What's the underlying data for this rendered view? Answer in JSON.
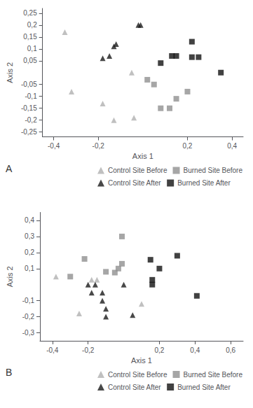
{
  "chart_data": [
    {
      "type": "scatter",
      "xlabel": "Axis 1",
      "ylabel": "Axis 2",
      "annotations": [
        "A"
      ],
      "xlim": [
        -0.45,
        0.45
      ],
      "ylim": [
        -0.27,
        0.27
      ],
      "xticks": [
        {
          "value": -0.4,
          "label": "-0,4"
        },
        {
          "value": -0.2,
          "label": "-0,2"
        },
        {
          "value": 0.2,
          "label": "0,2"
        },
        {
          "value": 0.4,
          "label": "0,4"
        }
      ],
      "yticks": [
        {
          "value": -0.25,
          "label": "-0,25"
        },
        {
          "value": -0.2,
          "label": "-0,2"
        },
        {
          "value": -0.15,
          "label": "-0,15"
        },
        {
          "value": -0.1,
          "label": "-0,1"
        },
        {
          "value": -0.05,
          "label": "-0,05"
        },
        {
          "value": 0.05,
          "label": "0,05"
        },
        {
          "value": 0.1,
          "label": "0,1"
        },
        {
          "value": 0.15,
          "label": "0,15"
        },
        {
          "value": 0.2,
          "label": "0,2"
        },
        {
          "value": 0.25,
          "label": "0,25"
        }
      ],
      "grid": false,
      "legend": "lower right",
      "series": [
        {
          "name": "Control Site Before",
          "color": "#b0b0b0",
          "marker": "triangle",
          "x": [
            -0.35,
            -0.05,
            -0.18,
            -0.13,
            -0.04,
            -0.32
          ],
          "values": [
            0.17,
            0.0,
            -0.13,
            -0.2,
            -0.19,
            -0.08
          ]
        },
        {
          "name": "Burned Site Before",
          "color": "#909090",
          "marker": "square",
          "x": [
            0.02,
            0.05,
            0.08,
            0.12,
            0.15,
            0.2
          ],
          "values": [
            -0.03,
            -0.05,
            -0.15,
            -0.15,
            -0.11,
            -0.08
          ]
        },
        {
          "name": "Control Site After",
          "color": "#1a1a1a",
          "marker": "triangle",
          "x": [
            -0.02,
            -0.01,
            -0.12,
            -0.13,
            -0.15,
            -0.18
          ],
          "values": [
            0.2,
            0.2,
            0.12,
            0.11,
            0.07,
            0.06
          ]
        },
        {
          "name": "Burned Site After",
          "color": "#111111",
          "marker": "square",
          "x": [
            0.08,
            0.13,
            0.15,
            0.22,
            0.22,
            0.25,
            0.35
          ],
          "values": [
            0.04,
            0.07,
            0.07,
            0.13,
            0.065,
            0.065,
            0.0
          ]
        }
      ]
    },
    {
      "type": "scatter",
      "xlabel": "Axis 1",
      "ylabel": "Axis 2",
      "annotations": [
        "B"
      ],
      "xlim": [
        -0.47,
        0.67
      ],
      "ylim": [
        -0.35,
        0.45
      ],
      "xticks": [
        {
          "value": -0.4,
          "label": "-0,4"
        },
        {
          "value": -0.2,
          "label": "-0,2"
        },
        {
          "value": 0.2,
          "label": "0,2"
        },
        {
          "value": 0.4,
          "label": "0,4"
        },
        {
          "value": 0.6,
          "label": "0,6"
        }
      ],
      "yticks": [
        {
          "value": -0.3,
          "label": "-0,3"
        },
        {
          "value": -0.2,
          "label": "-0,2"
        },
        {
          "value": -0.1,
          "label": "-0,1"
        },
        {
          "value": 0.1,
          "label": "0,1"
        },
        {
          "value": 0.2,
          "label": "0,2"
        },
        {
          "value": 0.3,
          "label": "0,3"
        },
        {
          "value": 0.4,
          "label": "0,4"
        }
      ],
      "grid": false,
      "legend": "lower right",
      "series": [
        {
          "name": "Control Site Before",
          "color": "#b0b0b0",
          "marker": "triangle",
          "x": [
            -0.38,
            -0.18,
            -0.15,
            0.1,
            -0.25
          ],
          "values": [
            0.05,
            0.03,
            0.03,
            -0.12,
            -0.18
          ]
        },
        {
          "name": "Burned Site Before",
          "color": "#909090",
          "marker": "square",
          "x": [
            -0.3,
            -0.22,
            -0.1,
            -0.05,
            -0.03,
            -0.01,
            -0.01
          ],
          "values": [
            0.05,
            0.16,
            0.08,
            0.075,
            0.1,
            0.13,
            0.3
          ]
        },
        {
          "name": "Control Site After",
          "color": "#1a1a1a",
          "marker": "triangle",
          "x": [
            -0.2,
            -0.16,
            -0.18,
            -0.12,
            -0.12,
            -0.1,
            0.0,
            -0.1,
            0.05
          ],
          "values": [
            -0.0,
            -0.0,
            -0.05,
            -0.05,
            -0.1,
            -0.15,
            -0.0,
            -0.2,
            -0.19
          ]
        },
        {
          "name": "Burned Site After",
          "color": "#111111",
          "marker": "square",
          "x": [
            0.15,
            0.16,
            0.16,
            0.2,
            0.3,
            0.41
          ],
          "values": [
            0.155,
            0.0,
            0.03,
            0.1,
            0.18,
            -0.07
          ]
        }
      ]
    }
  ]
}
